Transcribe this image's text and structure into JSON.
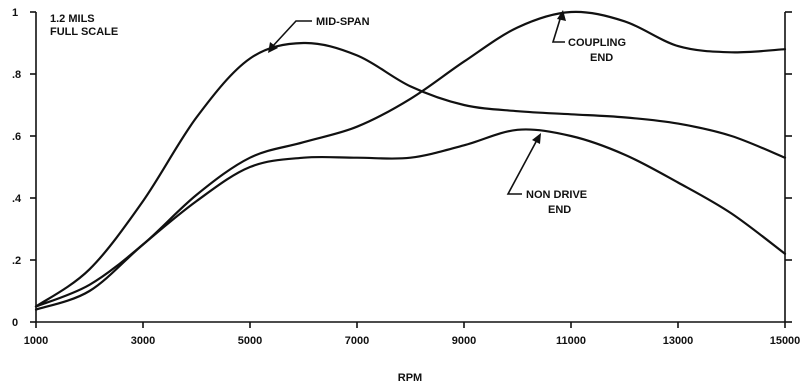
{
  "chart_data": {
    "type": "line",
    "title": "",
    "xlabel": "RPM",
    "ylabel": "",
    "xlim": [
      1000,
      15000
    ],
    "ylim": [
      0,
      1
    ],
    "x_ticks": [
      "1000",
      "3000",
      "5000",
      "7000",
      "9000",
      "11000",
      "13000",
      "15000"
    ],
    "y_ticks": [
      {
        "value": 0,
        "label": "0"
      },
      {
        "value": 0.2,
        "label": ".2"
      },
      {
        "value": 0.4,
        "label": ".4"
      },
      {
        "value": 0.6,
        "label": ".6"
      },
      {
        "value": 0.8,
        "label": ".8"
      },
      {
        "value": 1,
        "label": "1"
      }
    ],
    "scale_note": [
      "1.2 MILS",
      "FULL SCALE"
    ],
    "series": [
      {
        "name": "MID-SPAN",
        "label_lines": [
          "MID-SPAN"
        ],
        "x": [
          1000,
          2000,
          3000,
          4000,
          5000,
          6000,
          7000,
          8000,
          9000,
          10000,
          11000,
          12000,
          13000,
          14000,
          15000
        ],
        "values": [
          0.05,
          0.17,
          0.39,
          0.66,
          0.85,
          0.9,
          0.86,
          0.76,
          0.7,
          0.68,
          0.67,
          0.66,
          0.64,
          0.6,
          0.53
        ]
      },
      {
        "name": "COUPLING END",
        "label_lines": [
          "COUPLING",
          "END"
        ],
        "x": [
          1000,
          2000,
          3000,
          4000,
          5000,
          6000,
          7000,
          8000,
          9000,
          10000,
          11000,
          12000,
          13000,
          14000,
          15000
        ],
        "values": [
          0.05,
          0.12,
          0.25,
          0.41,
          0.53,
          0.58,
          0.63,
          0.72,
          0.84,
          0.95,
          1.0,
          0.97,
          0.89,
          0.87,
          0.88
        ]
      },
      {
        "name": "NON DRIVE END",
        "label_lines": [
          "NON DRIVE",
          "END"
        ],
        "x": [
          1000,
          2000,
          3000,
          4000,
          5000,
          6000,
          7000,
          8000,
          9000,
          10000,
          11000,
          12000,
          13000,
          14000,
          15000
        ],
        "values": [
          0.04,
          0.1,
          0.25,
          0.39,
          0.5,
          0.53,
          0.53,
          0.53,
          0.57,
          0.62,
          0.6,
          0.54,
          0.45,
          0.35,
          0.22
        ]
      }
    ],
    "grid": false
  }
}
